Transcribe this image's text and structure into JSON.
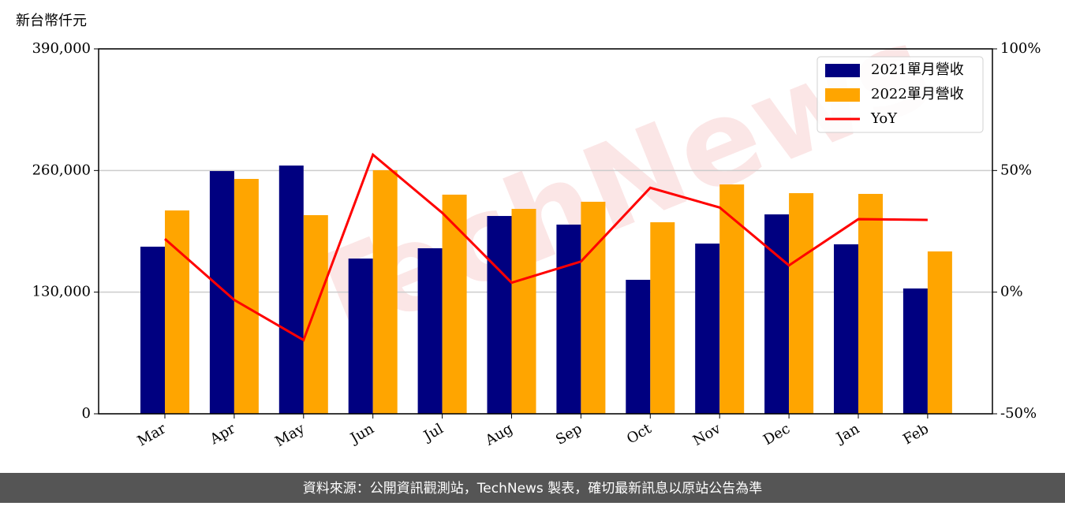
{
  "chart_data": {
    "type": "bar_line",
    "y_axis_label": "新台幣仟元",
    "watermark": "TechNews",
    "footer": "資料來源：公開資訊觀測站，TechNews 製表，確切最新訊息以原站公告為準",
    "categories": [
      "Mar",
      "Apr",
      "May",
      "Jun",
      "Jul",
      "Aug",
      "Sep",
      "Oct",
      "Nov",
      "Dec",
      "Jan",
      "Feb"
    ],
    "series": [
      {
        "name": "2021單月營收",
        "color": "#000080",
        "kind": "bar",
        "values": [
          178600,
          259400,
          265300,
          165900,
          176900,
          211400,
          202200,
          143200,
          181900,
          213100,
          181100,
          133900
        ]
      },
      {
        "name": "2022單月營收",
        "color": "#ffa500",
        "kind": "bar",
        "values": [
          217300,
          251000,
          212300,
          260300,
          234200,
          219000,
          226600,
          204700,
          245100,
          235800,
          235000,
          173500
        ]
      },
      {
        "name": "YoY",
        "color": "#ff0000",
        "kind": "line",
        "axis": "y2",
        "values": [
          21.9,
          -3.2,
          -19.7,
          56.5,
          32.6,
          3.9,
          12.6,
          42.9,
          34.8,
          11,
          30,
          29.7
        ]
      }
    ],
    "ylim": [
      0,
      390000
    ],
    "yticks": [
      0,
      {
        "value": 130000,
        "label": "130,000"
      },
      {
        "value": 260000,
        "label": "260,000"
      },
      {
        "value": 390000,
        "label": "390,000"
      }
    ],
    "y2lim": [
      -50,
      100
    ],
    "y2ticks": [
      {
        "value": -50,
        "label": "-50%"
      },
      {
        "value": 0,
        "label": "0%"
      },
      {
        "value": 50,
        "label": "50%"
      },
      {
        "value": 100,
        "label": "100%"
      }
    ],
    "grid": true,
    "legend": "upper right"
  }
}
